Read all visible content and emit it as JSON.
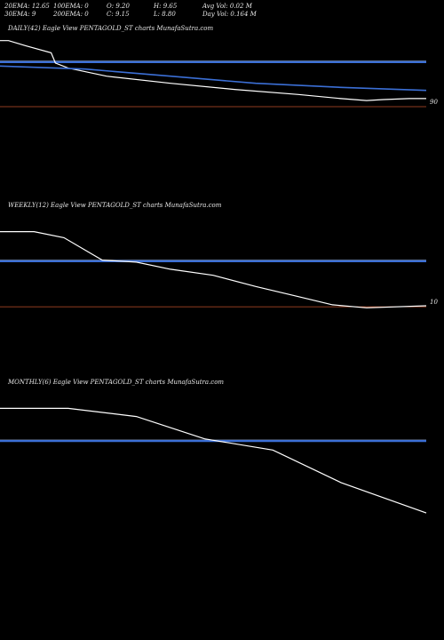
{
  "stats": {
    "row1": [
      "20EMA: 12.65",
      "100EMA: 0",
      "O: 9.20",
      "H: 9.65",
      "Avg Vol: 0.02  M"
    ],
    "row2": [
      "30EMA: 9",
      "200EMA: 0",
      "C: 9.15",
      "L: 8.80",
      "Day Vol: 0.164  M"
    ]
  },
  "colors": {
    "background": "#000000",
    "price": "#ffffff",
    "ema": "#3b6fd6",
    "level": "#c0502a",
    "grid": "#808080"
  },
  "chart_data": [
    {
      "type": "line",
      "title": "DAILY(42) Eagle  View  PENTAGOLD_ST charts MunafaSutra.com",
      "ylim": [
        8,
        22
      ],
      "x_range": [
        0,
        100
      ],
      "series": [
        {
          "x": [
            0,
            2,
            6,
            12,
            13,
            16,
            25,
            40,
            55,
            70,
            80,
            86,
            90,
            96,
            100
          ],
          "values": [
            21.5,
            21.5,
            21.0,
            20.3,
            19.3,
            18.8,
            18.0,
            17.3,
            16.7,
            16.2,
            15.8,
            15.6,
            15.7,
            15.8,
            15.8
          ]
        },
        {
          "x": [
            0,
            20,
            40,
            60,
            80,
            100
          ],
          "values": [
            19.0,
            18.7,
            18.0,
            17.3,
            16.9,
            16.6
          ]
        }
      ],
      "levels": [
        19.5
      ],
      "ref_level": {
        "value": 15.0,
        "label": "90"
      }
    },
    {
      "type": "line",
      "title": "WEEKLY(12) Eagle  View  PENTAGOLD_ST charts MunafaSutra.com",
      "ylim": [
        8,
        22
      ],
      "x_range": [
        0,
        100
      ],
      "series": [
        {
          "x": [
            0,
            8,
            15,
            24,
            32,
            40,
            50,
            60,
            70,
            78,
            86,
            100
          ],
          "values": [
            20.2,
            20.2,
            19.6,
            17.4,
            17.2,
            16.5,
            15.9,
            14.8,
            13.8,
            13.0,
            12.7,
            12.9
          ]
        }
      ],
      "levels": [
        17.4
      ],
      "ref_level": {
        "value": 12.8,
        "label": "10"
      }
    },
    {
      "type": "line",
      "title": "MONTHLY(6) Eagle  View  PENTAGOLD_ST charts MunafaSutra.com",
      "ylim": [
        8,
        22
      ],
      "x_range": [
        0,
        100
      ],
      "series": [
        {
          "x": [
            0,
            16,
            32,
            48,
            64,
            80,
            100
          ],
          "values": [
            20.3,
            20.3,
            19.5,
            17.3,
            16.2,
            13.0,
            10.0
          ]
        }
      ],
      "levels": [
        17.2
      ],
      "ref_level": null
    }
  ]
}
